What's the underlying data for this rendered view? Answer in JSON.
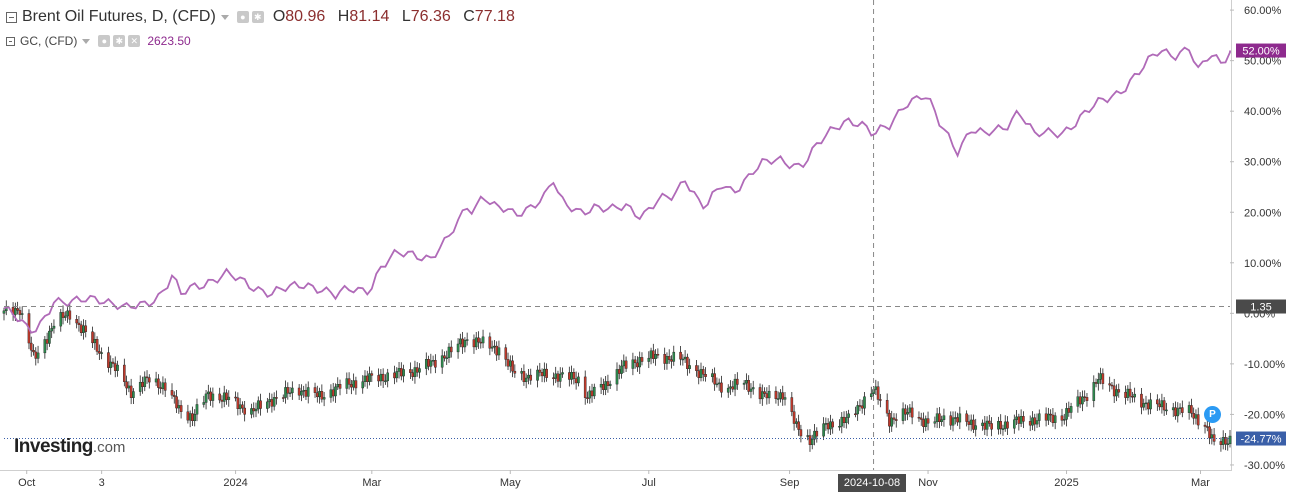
{
  "legend": {
    "main_title": "Brent Oil Futures, D, (CFD)",
    "ohlc": [
      {
        "key": "O",
        "value": "80.96"
      },
      {
        "key": "H",
        "value": "81.14"
      },
      {
        "key": "L",
        "value": "76.36"
      },
      {
        "key": "C",
        "value": "77.18"
      }
    ],
    "secondary_title": "GC, (CFD)",
    "secondary_value": "2623.50"
  },
  "logo": {
    "brand": "Investing",
    "suffix": ".com"
  },
  "badge": {
    "label": "P"
  },
  "crosshair": {
    "date_label": "2024-10-08",
    "value_label": "1.35"
  },
  "colors": {
    "gold_line": "#b06ab8",
    "up": "#2e8b4e",
    "down": "#c0392b",
    "gold_tag": "#8e2a8e",
    "brent_tag": "#3a5fa8"
  },
  "chart_data": {
    "type": "line",
    "y_axis": {
      "ticks": [
        "60.00%",
        "50.00%",
        "40.00%",
        "30.00%",
        "20.00%",
        "10.00%",
        "0.00%",
        "-10.00%",
        "-20.00%",
        "-30.00%"
      ],
      "tick_values": [
        60,
        50,
        40,
        30,
        20,
        10,
        0,
        -10,
        -20,
        -30
      ],
      "range": [
        -31,
        62
      ],
      "unit": "%"
    },
    "x_axis": {
      "ticks": [
        {
          "label": "Oct",
          "date": "2023-10-01"
        },
        {
          "label": "3",
          "date": "2023-11-03"
        },
        {
          "label": "2024",
          "date": "2024-01-01"
        },
        {
          "label": "Mar",
          "date": "2024-03-01"
        },
        {
          "label": "May",
          "date": "2024-05-01"
        },
        {
          "label": "Jul",
          "date": "2024-07-01"
        },
        {
          "label": "Sep",
          "date": "2024-09-01"
        },
        {
          "label": "Nov",
          "date": "2024-11-01"
        },
        {
          "label": "2025",
          "date": "2025-01-01"
        },
        {
          "label": "Mar",
          "date": "2025-03-01"
        }
      ],
      "range": [
        "2023-09-21",
        "2025-03-14"
      ]
    },
    "last_value_tags": [
      {
        "series": "GC, (CFD)",
        "label": "52.00%",
        "value": 52.0
      },
      {
        "series": "Brent Oil Futures, D, (CFD)",
        "label": "-24.77%",
        "value": -24.77
      }
    ],
    "series": [
      {
        "name": "GC, (CFD)",
        "style": "line",
        "points": [
          [
            "2023-09-21",
            1.0
          ],
          [
            "2023-09-26",
            -1.0
          ],
          [
            "2023-10-02",
            -3.5
          ],
          [
            "2023-10-06",
            -2.5
          ],
          [
            "2023-10-10",
            0.5
          ],
          [
            "2023-10-13",
            2.5
          ],
          [
            "2023-10-20",
            1.5
          ],
          [
            "2023-10-27",
            3.0
          ],
          [
            "2023-11-01",
            3.5
          ],
          [
            "2023-11-07",
            2.0
          ],
          [
            "2023-11-13",
            0.5
          ],
          [
            "2023-11-20",
            1.8
          ],
          [
            "2023-11-28",
            3.5
          ],
          [
            "2023-12-01",
            5.0
          ],
          [
            "2023-12-04",
            7.0
          ],
          [
            "2023-12-08",
            3.5
          ],
          [
            "2023-12-14",
            5.5
          ],
          [
            "2023-12-20",
            6.5
          ],
          [
            "2023-12-28",
            7.5
          ],
          [
            "2024-01-05",
            6.0
          ],
          [
            "2024-01-12",
            5.0
          ],
          [
            "2024-01-17",
            4.0
          ],
          [
            "2024-01-25",
            4.8
          ],
          [
            "2024-02-01",
            6.0
          ],
          [
            "2024-02-08",
            5.0
          ],
          [
            "2024-02-14",
            3.2
          ],
          [
            "2024-02-21",
            4.8
          ],
          [
            "2024-02-29",
            5.0
          ],
          [
            "2024-03-05",
            9.0
          ],
          [
            "2024-03-12",
            11.5
          ],
          [
            "2024-03-20",
            12.0
          ],
          [
            "2024-03-27",
            11.0
          ],
          [
            "2024-04-03",
            14.0
          ],
          [
            "2024-04-08",
            18.0
          ],
          [
            "2024-04-12",
            21.5
          ],
          [
            "2024-04-15",
            20.5
          ],
          [
            "2024-04-19",
            24.0
          ],
          [
            "2024-04-23",
            21.0
          ],
          [
            "2024-04-30",
            20.0
          ],
          [
            "2024-05-03",
            19.5
          ],
          [
            "2024-05-10",
            21.5
          ],
          [
            "2024-05-16",
            23.0
          ],
          [
            "2024-05-20",
            26.0
          ],
          [
            "2024-05-23",
            22.0
          ],
          [
            "2024-05-31",
            20.5
          ],
          [
            "2024-06-07",
            21.0
          ],
          [
            "2024-06-14",
            20.0
          ],
          [
            "2024-06-21",
            21.5
          ],
          [
            "2024-06-28",
            19.5
          ],
          [
            "2024-07-05",
            22.0
          ],
          [
            "2024-07-12",
            23.0
          ],
          [
            "2024-07-17",
            27.0
          ],
          [
            "2024-07-23",
            22.5
          ],
          [
            "2024-07-26",
            21.0
          ],
          [
            "2024-08-02",
            25.0
          ],
          [
            "2024-08-07",
            24.0
          ],
          [
            "2024-08-16",
            28.5
          ],
          [
            "2024-08-20",
            29.5
          ],
          [
            "2024-08-28",
            30.0
          ],
          [
            "2024-09-06",
            29.5
          ],
          [
            "2024-09-13",
            33.0
          ],
          [
            "2024-09-20",
            36.0
          ],
          [
            "2024-09-26",
            38.5
          ],
          [
            "2024-10-02",
            38.0
          ],
          [
            "2024-10-08",
            35.0
          ],
          [
            "2024-10-15",
            37.0
          ],
          [
            "2024-10-22",
            42.0
          ],
          [
            "2024-10-30",
            43.0
          ],
          [
            "2024-11-01",
            42.0
          ],
          [
            "2024-11-06",
            37.5
          ],
          [
            "2024-11-14",
            32.5
          ],
          [
            "2024-11-20",
            36.5
          ],
          [
            "2024-11-26",
            35.0
          ],
          [
            "2024-12-05",
            37.0
          ],
          [
            "2024-12-11",
            40.5
          ],
          [
            "2024-12-18",
            35.0
          ],
          [
            "2024-12-30",
            36.0
          ],
          [
            "2025-01-08",
            39.0
          ],
          [
            "2025-01-17",
            42.0
          ],
          [
            "2025-01-24",
            44.0
          ],
          [
            "2025-02-03",
            48.0
          ],
          [
            "2025-02-11",
            52.0
          ],
          [
            "2025-02-18",
            51.5
          ],
          [
            "2025-02-24",
            52.5
          ],
          [
            "2025-02-28",
            47.5
          ],
          [
            "2025-03-05",
            51.0
          ],
          [
            "2025-03-10",
            50.0
          ],
          [
            "2025-03-14",
            52.0
          ]
        ]
      },
      {
        "name": "Brent Oil Futures, D, (CFD)",
        "style": "candlestick",
        "points": [
          [
            "2023-09-21",
            0.0
          ],
          [
            "2023-09-28",
            1.0
          ],
          [
            "2023-10-04",
            -9.0
          ],
          [
            "2023-10-06",
            -8.0
          ],
          [
            "2023-10-13",
            -2.0
          ],
          [
            "2023-10-20",
            0.0
          ],
          [
            "2023-10-27",
            -4.0
          ],
          [
            "2023-11-03",
            -8.0
          ],
          [
            "2023-11-10",
            -11.5
          ],
          [
            "2023-11-16",
            -15.5
          ],
          [
            "2023-11-24",
            -13.0
          ],
          [
            "2023-12-01",
            -14.5
          ],
          [
            "2023-12-07",
            -19.0
          ],
          [
            "2023-12-13",
            -20.5
          ],
          [
            "2023-12-20",
            -16.0
          ],
          [
            "2023-12-29",
            -17.0
          ],
          [
            "2024-01-08",
            -19.5
          ],
          [
            "2024-01-17",
            -17.0
          ],
          [
            "2024-01-29",
            -15.0
          ],
          [
            "2024-02-07",
            -16.5
          ],
          [
            "2024-02-16",
            -14.5
          ],
          [
            "2024-02-28",
            -13.0
          ],
          [
            "2024-03-07",
            -12.5
          ],
          [
            "2024-03-18",
            -11.5
          ],
          [
            "2024-03-27",
            -10.0
          ],
          [
            "2024-04-05",
            -7.5
          ],
          [
            "2024-04-12",
            -5.0
          ],
          [
            "2024-04-19",
            -6.0
          ],
          [
            "2024-04-26",
            -7.0
          ],
          [
            "2024-05-02",
            -11.5
          ],
          [
            "2024-05-08",
            -12.5
          ],
          [
            "2024-05-17",
            -12.0
          ],
          [
            "2024-05-31",
            -13.0
          ],
          [
            "2024-06-04",
            -16.5
          ],
          [
            "2024-06-12",
            -14.0
          ],
          [
            "2024-06-20",
            -10.5
          ],
          [
            "2024-06-28",
            -9.0
          ],
          [
            "2024-07-05",
            -8.5
          ],
          [
            "2024-07-15",
            -9.0
          ],
          [
            "2024-07-26",
            -12.5
          ],
          [
            "2024-08-05",
            -15.0
          ],
          [
            "2024-08-12",
            -13.5
          ],
          [
            "2024-08-20",
            -16.5
          ],
          [
            "2024-08-29",
            -16.0
          ],
          [
            "2024-09-04",
            -22.5
          ],
          [
            "2024-09-10",
            -25.0
          ],
          [
            "2024-09-18",
            -22.0
          ],
          [
            "2024-09-27",
            -21.0
          ],
          [
            "2024-10-03",
            -17.5
          ],
          [
            "2024-10-08",
            -15.0
          ],
          [
            "2024-10-15",
            -21.0
          ],
          [
            "2024-10-25",
            -19.5
          ],
          [
            "2024-11-01",
            -22.0
          ],
          [
            "2024-11-08",
            -20.5
          ],
          [
            "2024-11-18",
            -21.5
          ],
          [
            "2024-11-29",
            -22.5
          ],
          [
            "2024-12-09",
            -21.5
          ],
          [
            "2024-12-18",
            -21.0
          ],
          [
            "2024-12-30",
            -20.5
          ],
          [
            "2025-01-10",
            -16.0
          ],
          [
            "2025-01-15",
            -13.0
          ],
          [
            "2025-01-22",
            -15.0
          ],
          [
            "2025-02-03",
            -17.5
          ],
          [
            "2025-02-12",
            -18.5
          ],
          [
            "2025-02-24",
            -19.5
          ],
          [
            "2025-03-03",
            -22.0
          ],
          [
            "2025-03-07",
            -26.0
          ],
          [
            "2025-03-14",
            -24.77
          ]
        ]
      }
    ]
  }
}
